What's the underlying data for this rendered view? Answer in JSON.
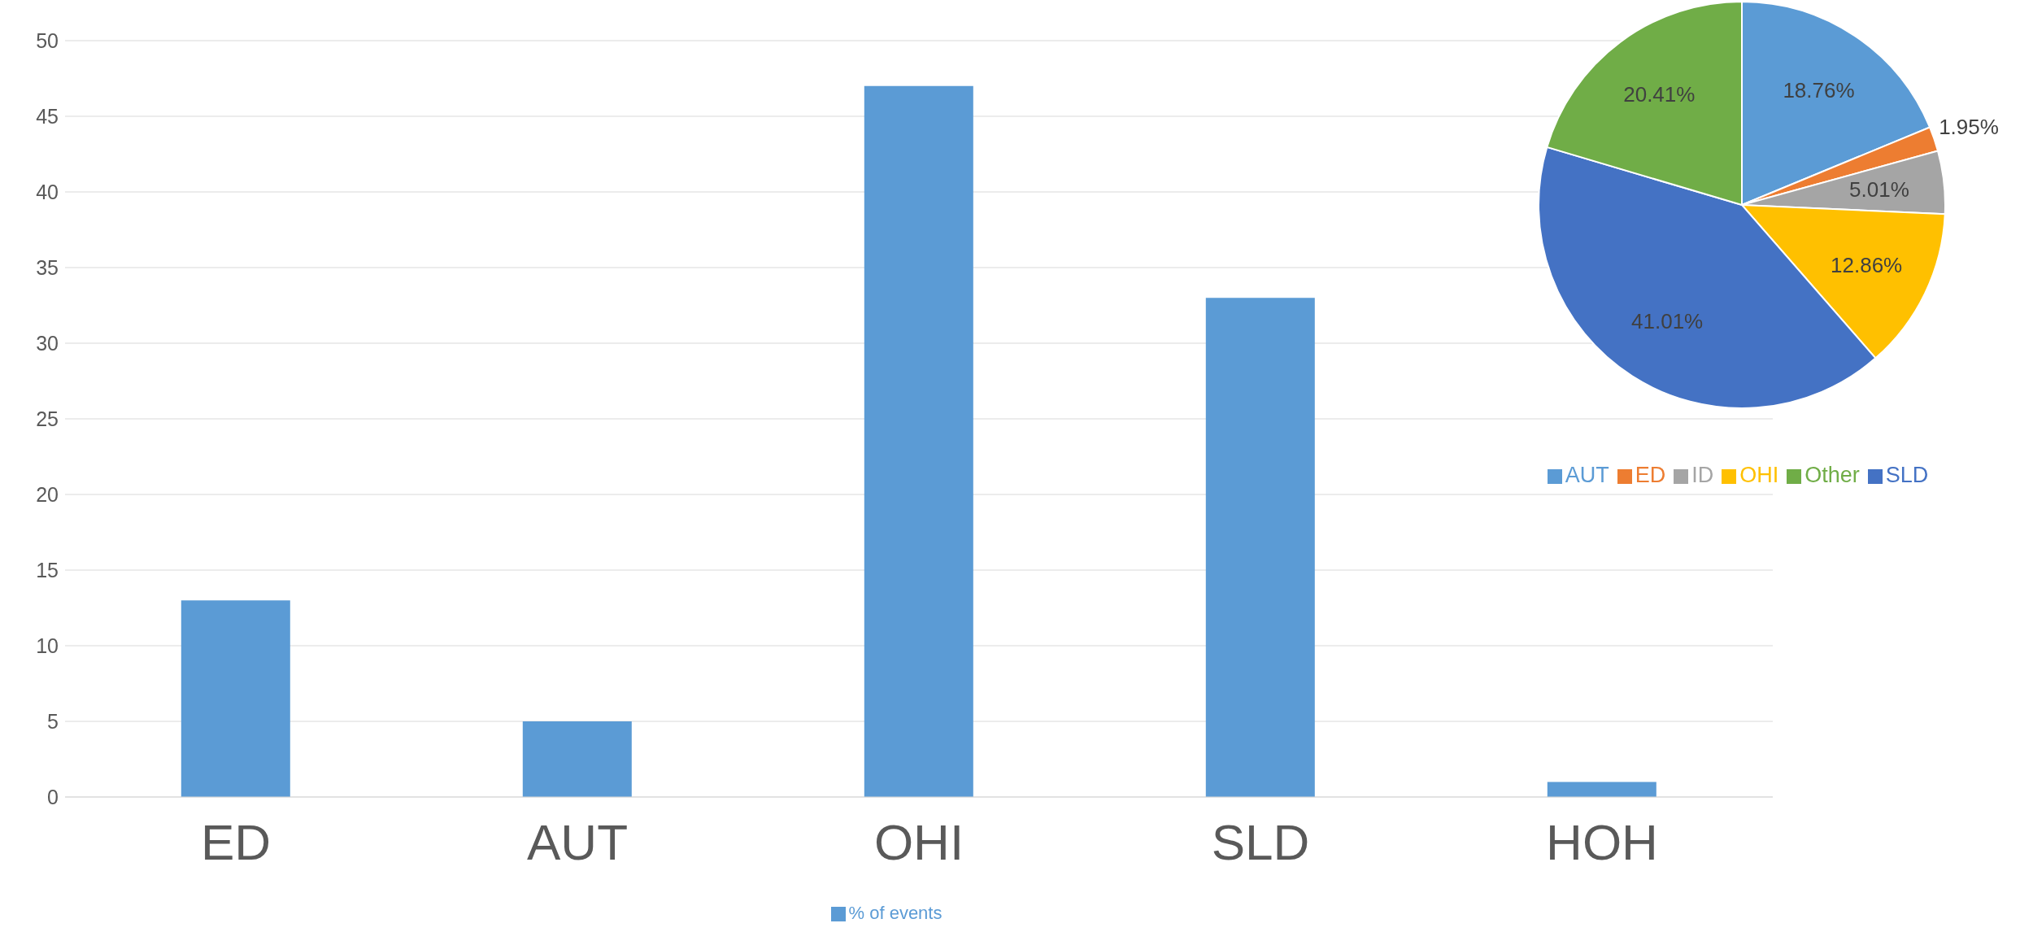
{
  "chart_data": [
    {
      "type": "bar",
      "categories": [
        "ED",
        "AUT",
        "OHI",
        "SLD",
        "HOH"
      ],
      "series": [
        {
          "name": "% of events",
          "color": "#5b9bd5",
          "values": [
            13,
            5,
            47,
            33,
            1
          ]
        }
      ],
      "ylim": [
        0,
        50
      ],
      "yticks": [
        0,
        5,
        10,
        15,
        20,
        25,
        30,
        35,
        40,
        45,
        50
      ],
      "grid": "y",
      "legend": "bottom"
    },
    {
      "type": "pie",
      "categories": [
        "AUT",
        "ED",
        "ID",
        "OHI",
        "SLD",
        "Other"
      ],
      "values": [
        18.76,
        1.95,
        5.01,
        12.86,
        41.01,
        20.41
      ],
      "colors": [
        "#5b9bd5",
        "#ed7d31",
        "#a5a5a5",
        "#ffc000",
        "#4472c4",
        "#70ad47"
      ],
      "value_labels": [
        "18.76%",
        "1.95%",
        "5.01%",
        "12.86%",
        "41.01%",
        "20.41%"
      ],
      "legend": "bottom"
    }
  ]
}
